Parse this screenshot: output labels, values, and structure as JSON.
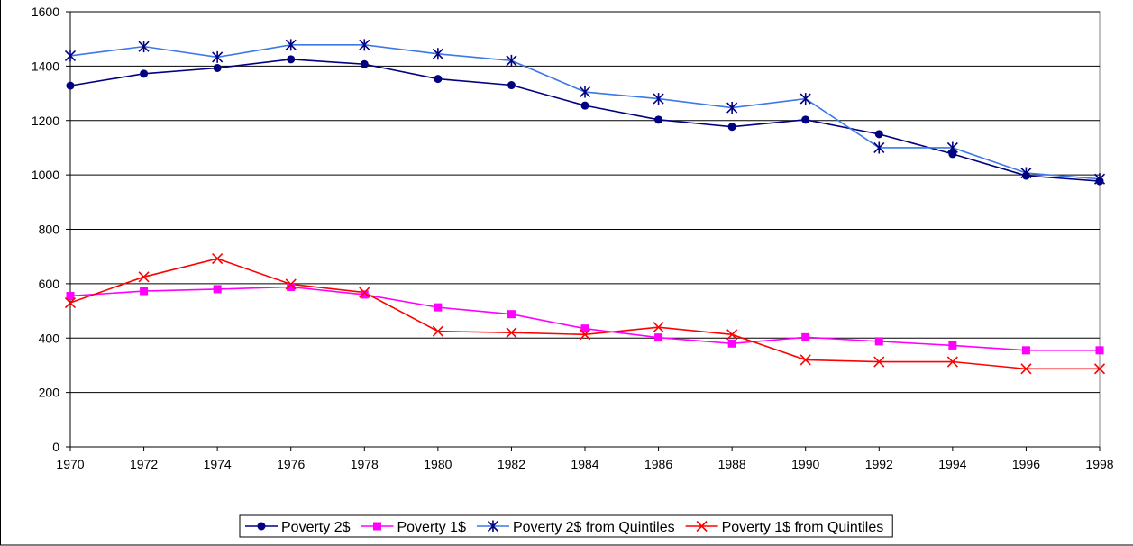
{
  "chart_data": {
    "type": "line",
    "x": [
      1970,
      1972,
      1974,
      1976,
      1978,
      1980,
      1982,
      1984,
      1986,
      1988,
      1990,
      1992,
      1994,
      1996,
      1998
    ],
    "xlim": [
      1970,
      1998
    ],
    "xticks": [
      1970,
      1972,
      1974,
      1976,
      1978,
      1980,
      1982,
      1984,
      1986,
      1988,
      1990,
      1992,
      1994,
      1996,
      1998
    ],
    "ylim": [
      0,
      1600
    ],
    "yticks": [
      0,
      200,
      400,
      600,
      800,
      1000,
      1200,
      1400,
      1600
    ],
    "grid": true,
    "legend": "bottom",
    "series": [
      {
        "name": "Poverty 2$",
        "color": "#000080",
        "marker": "circle",
        "marker_color": "#000080",
        "values": [
          1328,
          1372,
          1393,
          1425,
          1407,
          1353,
          1330,
          1255,
          1203,
          1177,
          1203,
          1150,
          1077,
          997,
          977
        ]
      },
      {
        "name": "Poverty 1$",
        "color": "#ff00ff",
        "marker": "square",
        "marker_color": "#ff00ff",
        "values": [
          555,
          573,
          580,
          588,
          560,
          513,
          488,
          435,
          402,
          380,
          403,
          388,
          373,
          355,
          355
        ]
      },
      {
        "name": "Poverty 2$ from Quintiles",
        "color": "#3c78e6",
        "marker": "asterisk",
        "marker_color": "#000080",
        "values": [
          1438,
          1472,
          1433,
          1478,
          1478,
          1445,
          1420,
          1305,
          1280,
          1247,
          1280,
          1100,
          1100,
          1007,
          985
        ]
      },
      {
        "name": "Poverty 1$ from Quintiles",
        "color": "#ff0000",
        "marker": "x",
        "marker_color": "#ff0000",
        "values": [
          530,
          625,
          692,
          598,
          568,
          425,
          420,
          413,
          440,
          413,
          320,
          313,
          313,
          287,
          287
        ]
      }
    ]
  }
}
